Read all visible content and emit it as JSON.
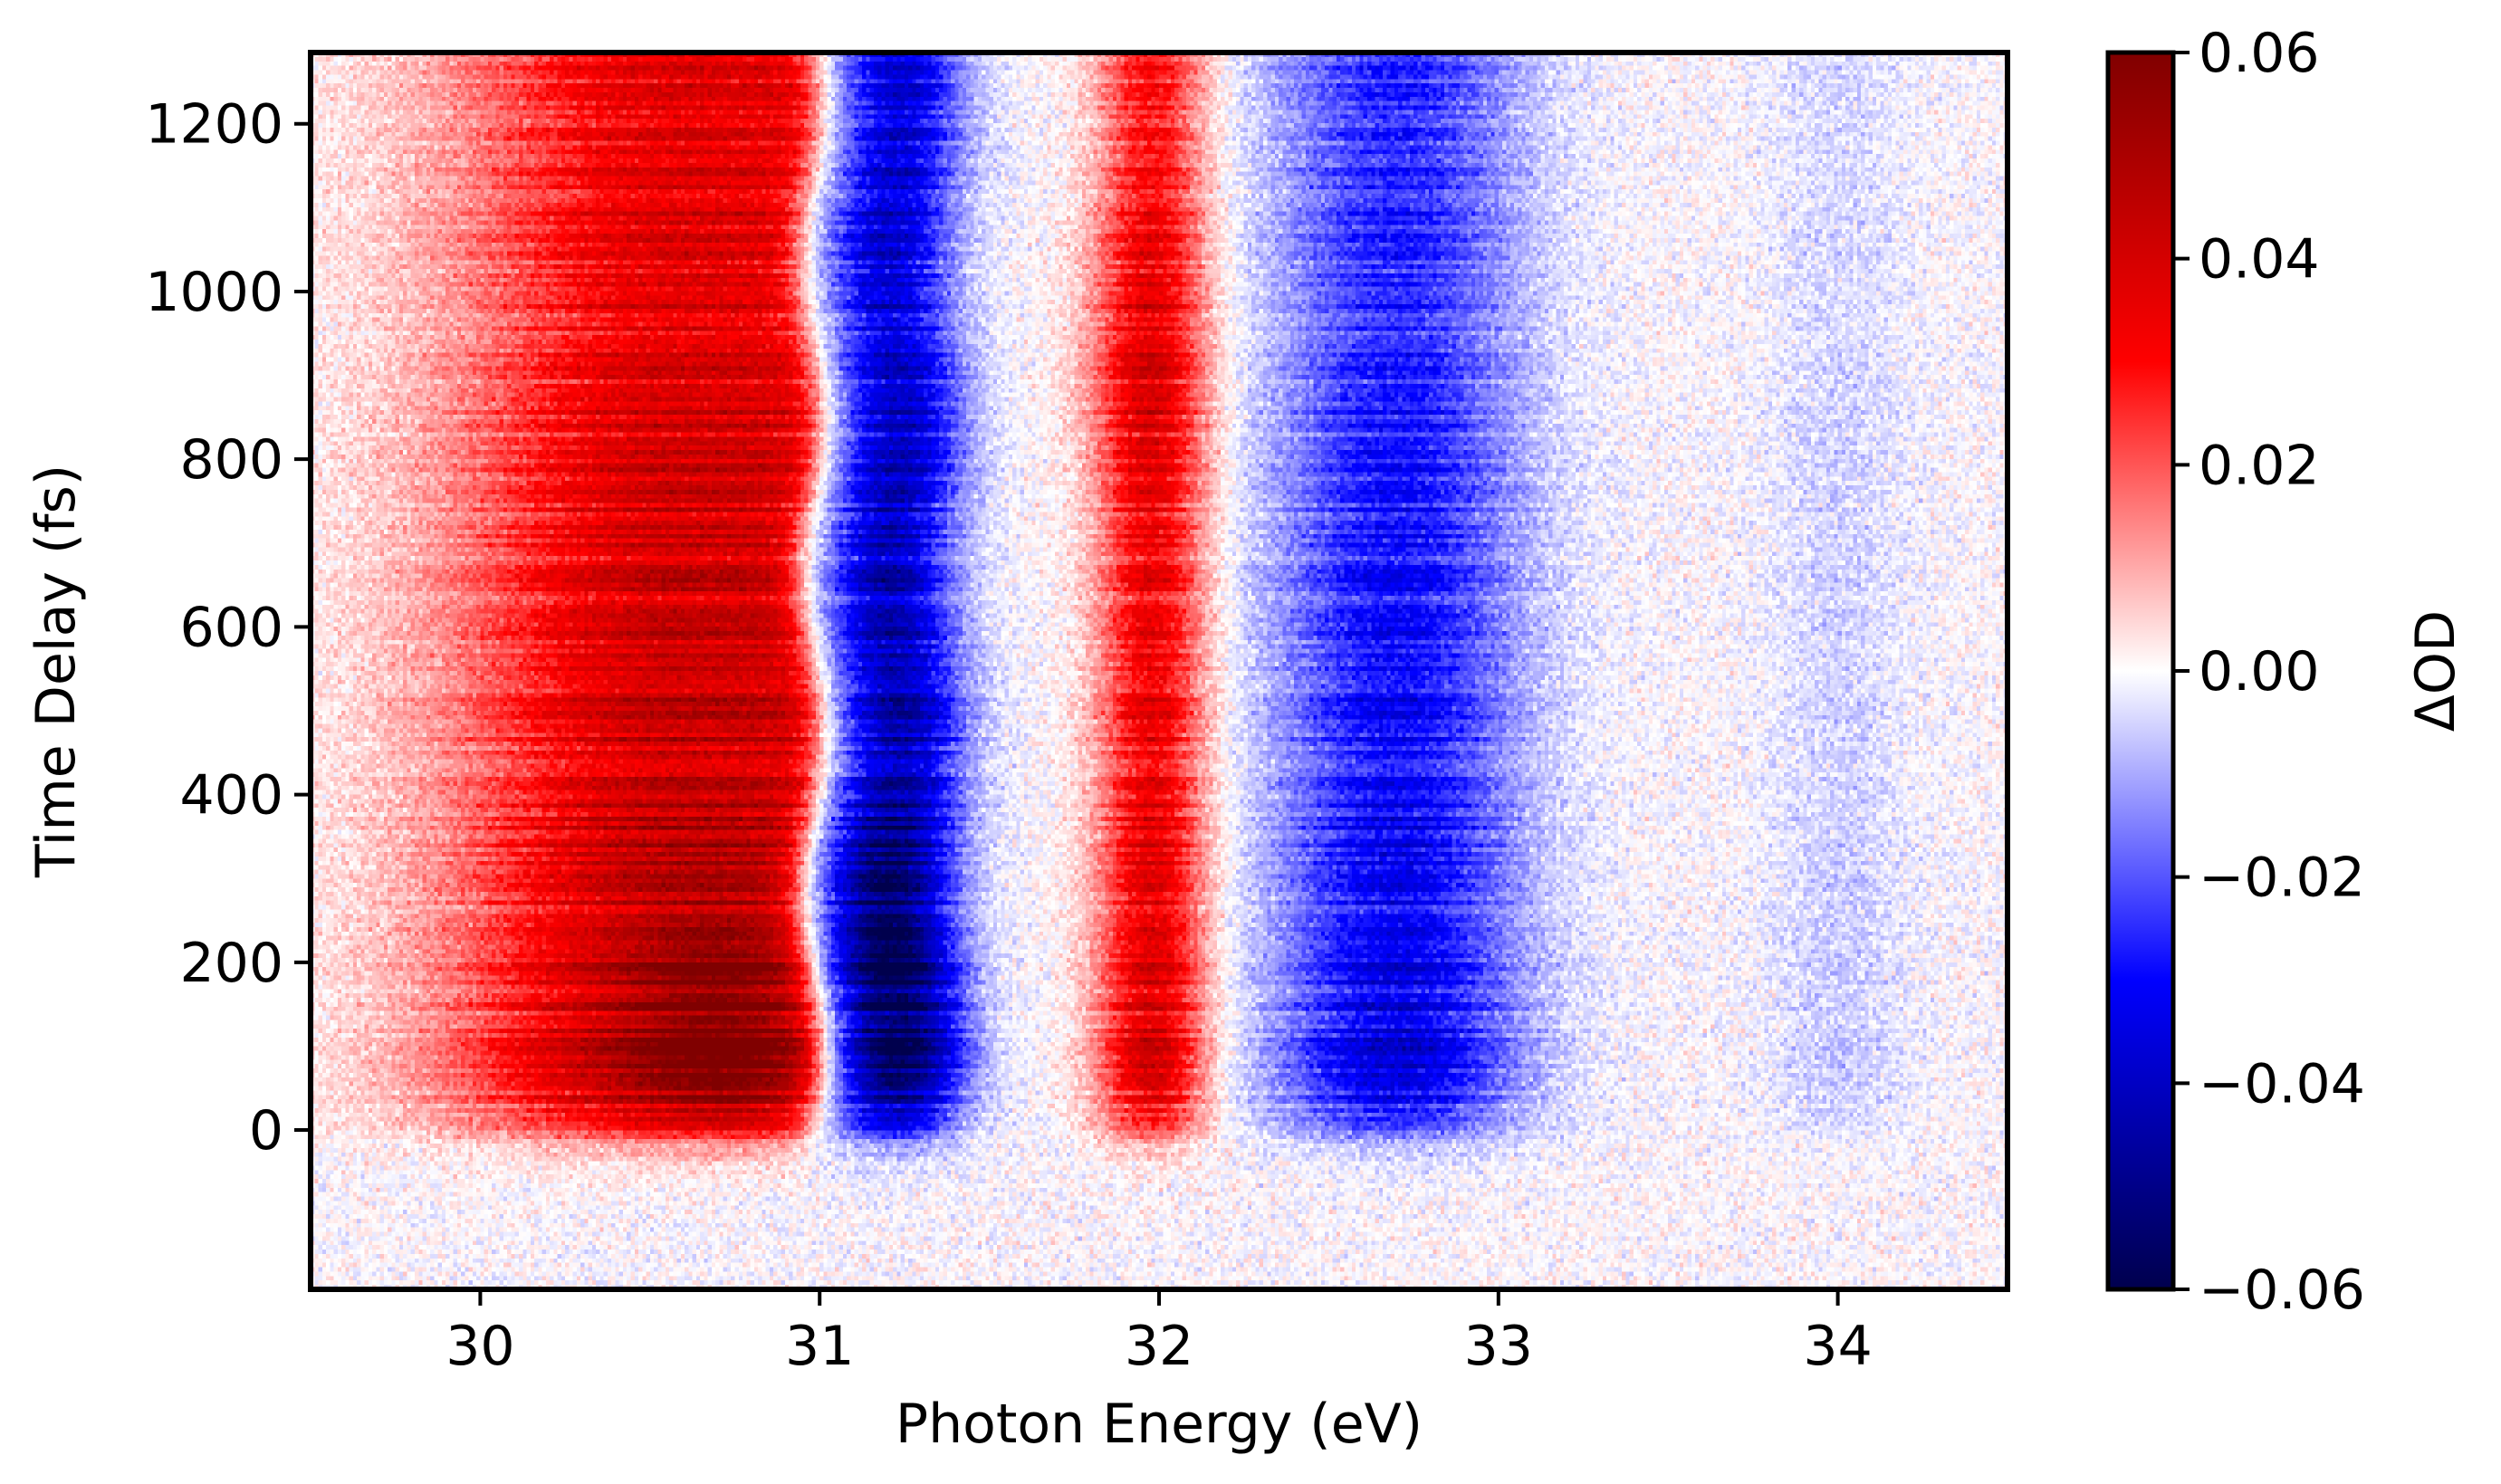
{
  "chart_data": {
    "type": "heatmap",
    "xlabel": "Photon Energy (eV)",
    "ylabel": "Time Delay (fs)",
    "xlim": [
      29.5,
      34.5
    ],
    "ylim": [
      -190,
      1285
    ],
    "xticks": [
      30,
      31,
      32,
      33,
      34
    ],
    "xtick_labels": [
      "30",
      "31",
      "32",
      "33",
      "34"
    ],
    "yticks": [
      0,
      200,
      400,
      600,
      800,
      1000,
      1200
    ],
    "ytick_labels": [
      "0",
      "200",
      "400",
      "600",
      "800",
      "1000",
      "1200"
    ],
    "colorbar": {
      "label": "ΔOD",
      "lim": [
        -0.06,
        0.06
      ],
      "ticks": [
        -0.06,
        -0.04,
        -0.02,
        0.0,
        0.02,
        0.04,
        0.06
      ],
      "tick_labels": [
        "−0.06",
        "−0.04",
        "−0.02",
        "0.00",
        "0.02",
        "0.04",
        "0.06"
      ],
      "colormap": "seismic",
      "colors": [
        "#00004d",
        "#0000ff",
        "#ffffff",
        "#ff0000",
        "#800000"
      ]
    },
    "grid": false,
    "bands": [
      {
        "name": "",
        "center_eV": 30.6,
        "sigma_eV": 0.3,
        "edge_eV": 30.97,
        "peak_dOD": 0.05
      },
      {
        "name": "",
        "center_eV": 31.22,
        "sigma_eV": 0.19,
        "peak_dOD": -0.05
      },
      {
        "name": "",
        "center_eV": 31.98,
        "sigma_eV": 0.16,
        "peak_dOD": 0.04
      },
      {
        "name": "",
        "center_eV": 32.7,
        "sigma_eV": 0.36,
        "peak_dOD": -0.035
      },
      {
        "name": "",
        "center_eV": 34.0,
        "sigma_eV": 0.2,
        "peak_dOD": -0.006
      }
    ],
    "onset_fs": 0,
    "features": [
      {
        "delay_fs": 120,
        "energy_eV": 30.7,
        "dOD": 0.06
      },
      {
        "delay_fs": 220,
        "energy_eV": 31.2,
        "dOD": -0.06
      },
      {
        "delay_fs": 930,
        "energy_eV": 31.95,
        "dOD": 0.05
      }
    ]
  }
}
